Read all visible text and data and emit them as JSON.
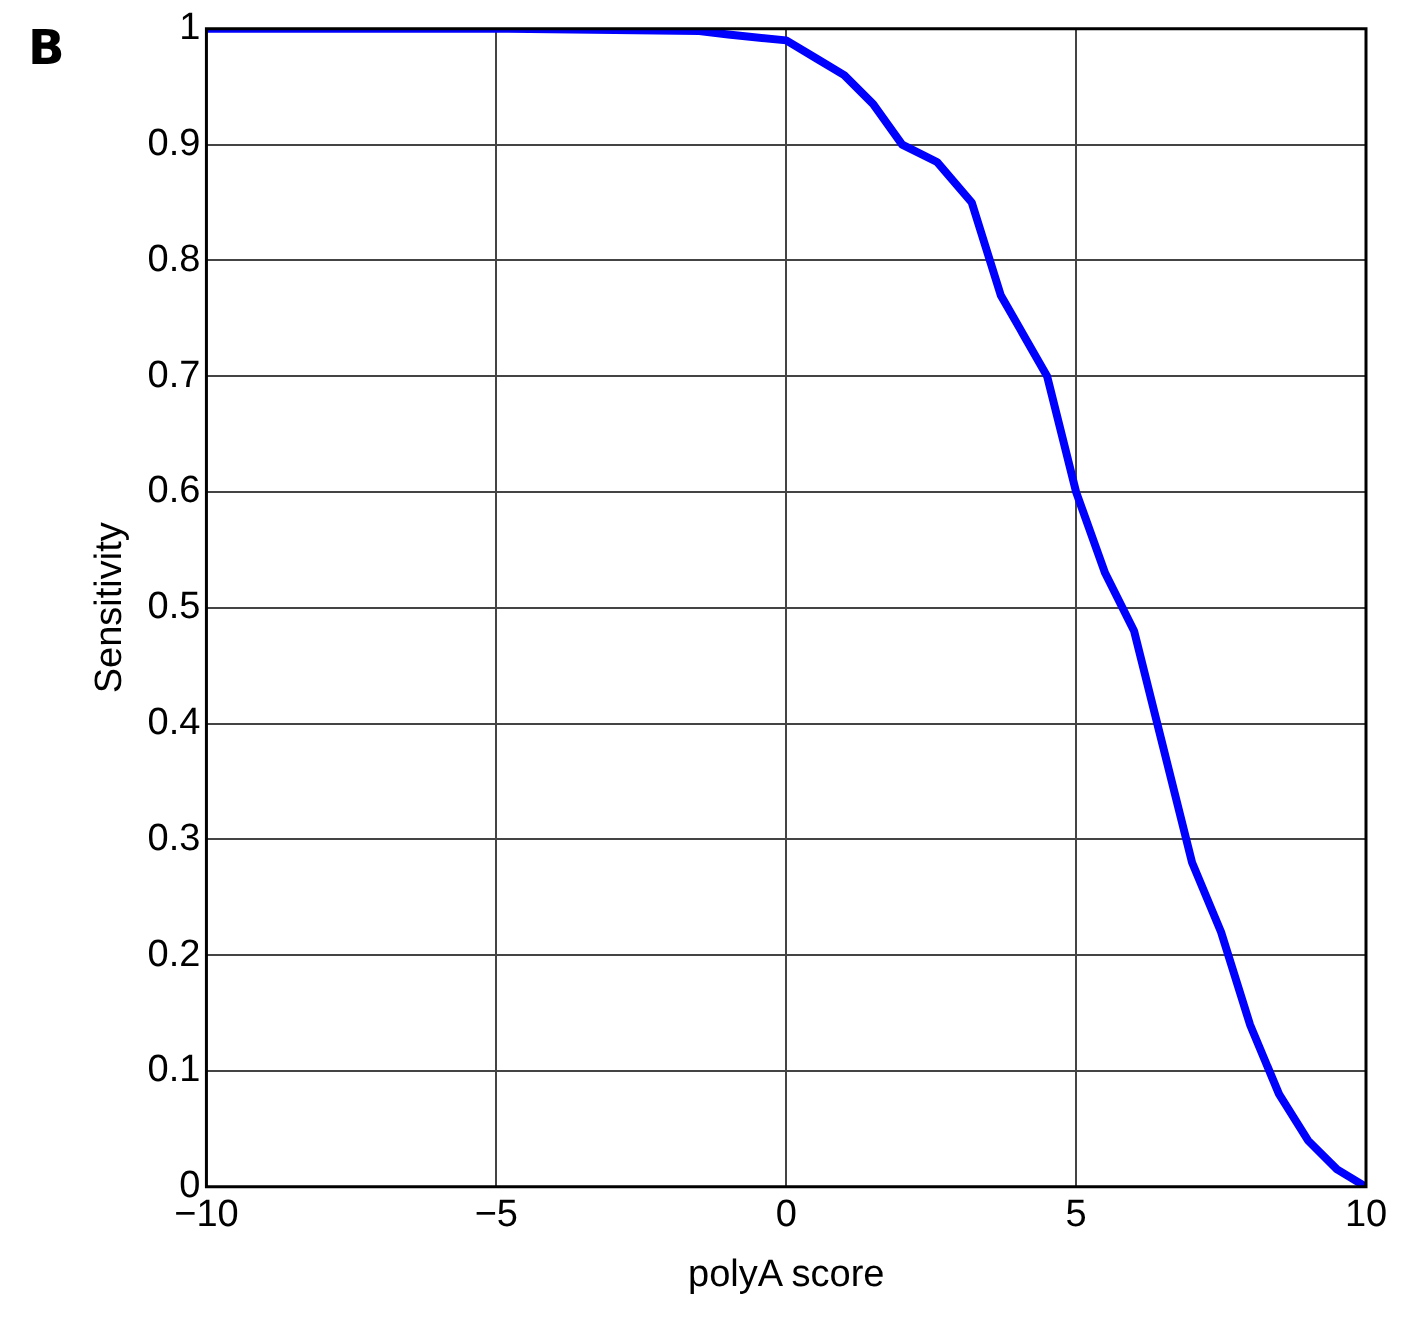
{
  "chart_data": {
    "type": "line",
    "title": "B",
    "xlabel": "polyA score",
    "ylabel": "Sensitivity",
    "x": [
      -10,
      -4.8,
      -1.5,
      -1,
      0,
      0.5,
      1,
      1.5,
      2,
      2.6,
      3.2,
      3.7,
      4.1,
      4.5,
      5,
      5.5,
      6,
      6.5,
      7,
      7.5,
      8,
      8.5,
      9,
      9.5,
      10
    ],
    "series": [
      {
        "color": "#0000ff",
        "values": [
          1,
          1,
          0.998,
          0.995,
          0.99,
          0.975,
          0.96,
          0.935,
          0.9,
          0.885,
          0.85,
          0.77,
          0.735,
          0.7,
          0.6,
          0.53,
          0.48,
          0.38,
          0.28,
          0.22,
          0.14,
          0.08,
          0.04,
          0.015,
          0
        ]
      }
    ],
    "xlim": [
      -10,
      10
    ],
    "xticks": [
      {
        "value": -10,
        "label": "−10"
      },
      {
        "value": -5,
        "label": "−5"
      },
      0,
      5,
      10
    ],
    "ylim": [
      0,
      1
    ],
    "yticks": [
      0,
      0.1,
      0.2,
      0.3,
      0.4,
      0.5,
      0.6,
      0.7,
      0.8,
      0.9,
      1
    ],
    "grid": true,
    "legend": false,
    "marker": "none",
    "line_style": "solid"
  }
}
